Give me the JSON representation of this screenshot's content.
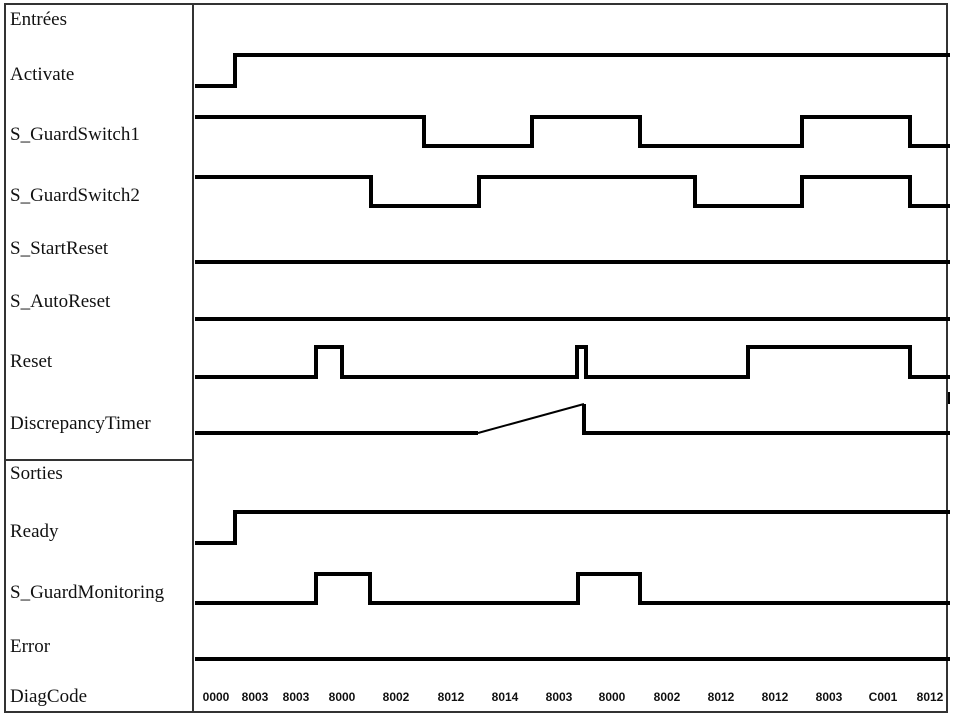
{
  "sections": {
    "inputs": "Entrées",
    "outputs": "Sorties"
  },
  "signals": {
    "activate": "Activate",
    "guard_switch1": "S_GuardSwitch1",
    "guard_switch2": "S_GuardSwitch2",
    "start_reset": "S_StartReset",
    "auto_reset": "S_AutoReset",
    "reset": "Reset",
    "discrepancy_timer": "DiscrepancyTimer",
    "ready": "Ready",
    "guard_monitoring": "S_GuardMonitoring",
    "error": "Error",
    "diag_code": "DiagCode"
  },
  "diag_codes": [
    "0000",
    "8003",
    "8003",
    "8000",
    "8002",
    "8012",
    "8014",
    "8003",
    "8000",
    "8002",
    "8012",
    "8012",
    "8003",
    "C001",
    "8012"
  ],
  "colors": {
    "line": "#000000",
    "frame": "#333333"
  }
}
